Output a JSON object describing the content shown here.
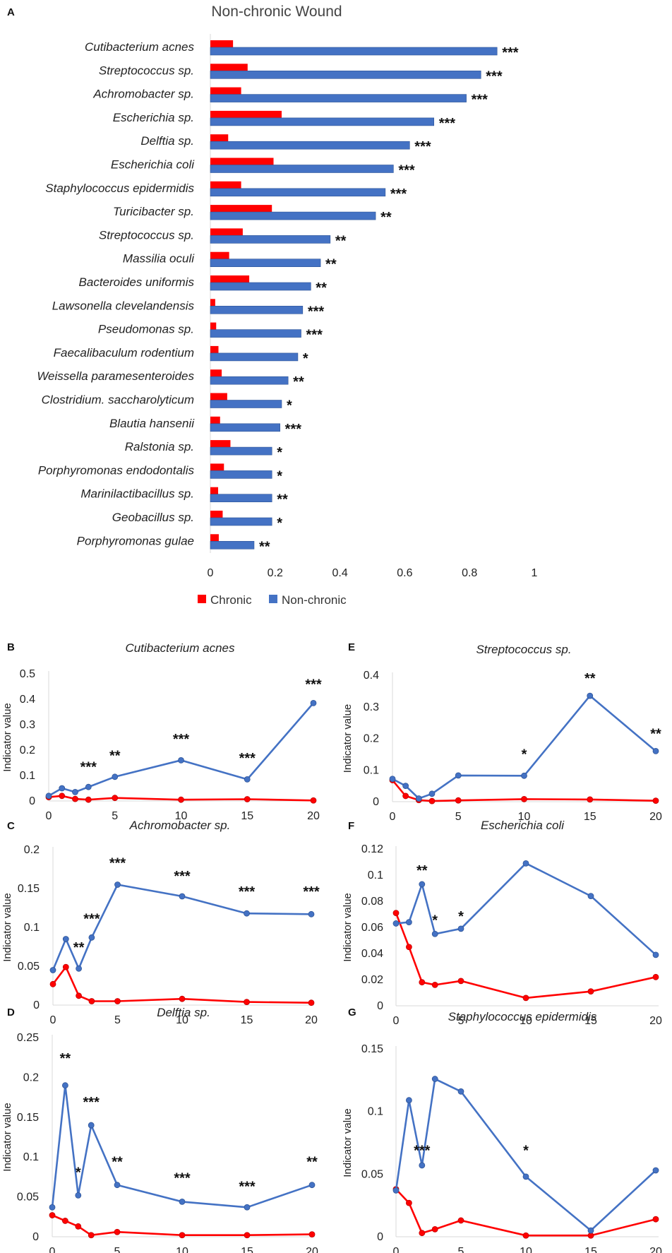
{
  "chart_data": [
    {
      "panel": "A",
      "type": "bar",
      "orientation": "horizontal",
      "title": "Non-chronic Wound",
      "categories": [
        "Cutibacterium acnes",
        "Streptococcus sp.",
        "Achromobacter sp.",
        "Escherichia sp.",
        "Delftia sp.",
        "Escherichia coli",
        "Staphylococcus epidermidis",
        "Turicibacter sp.",
        "Streptococcus sp.",
        "Massilia oculi",
        "Bacteroides uniformis",
        "Lawsonella clevelandensis",
        "Pseudomonas sp.",
        "Faecalibaculum rodentium",
        "Weissella paramesenteroides",
        "Clostridium. saccharolyticum",
        "Blautia hansenii",
        "Ralstonia sp.",
        "Porphyromonas endodontalis",
        "Marinilactibacillus sp.",
        "Geobacillus sp.",
        "Porphyromonas gulae"
      ],
      "series": [
        {
          "name": "Chronic",
          "color": "#ff0000",
          "values": [
            0.07,
            0.115,
            0.095,
            0.22,
            0.055,
            0.195,
            0.095,
            0.19,
            0.1,
            0.058,
            0.12,
            0.015,
            0.018,
            0.025,
            0.035,
            0.052,
            0.03,
            0.062,
            0.042,
            0.024,
            0.038,
            0.026
          ]
        },
        {
          "name": "Non-chronic",
          "color": "#4472c4",
          "values": [
            0.885,
            0.835,
            0.79,
            0.69,
            0.615,
            0.565,
            0.54,
            0.51,
            0.37,
            0.34,
            0.31,
            0.285,
            0.28,
            0.27,
            0.24,
            0.22,
            0.215,
            0.19,
            0.19,
            0.19,
            0.19,
            0.135
          ]
        }
      ],
      "significance": [
        "***",
        "***",
        "***",
        "***",
        "***",
        "***",
        "***",
        "**",
        "**",
        "**",
        "**",
        "***",
        "***",
        "*",
        "**",
        "*",
        "***",
        "*",
        "*",
        "**",
        "*",
        "**"
      ],
      "xticks": [
        0,
        0.2,
        0.4,
        0.6,
        0.8,
        1
      ],
      "xtick_labels": [
        "0",
        "0.2",
        "0.4",
        "0.6",
        "0.8",
        "1"
      ],
      "xlim": [
        0,
        1
      ],
      "legend": [
        "Chronic",
        "Non-chronic"
      ],
      "legend_position": "bottom"
    },
    {
      "panel": "B",
      "type": "line",
      "title": "Cutibacterium acnes",
      "ylabel": "Indicator value",
      "ylim": [
        0,
        0.5
      ],
      "yticks": [
        "0",
        "0.1",
        "0.2",
        "0.3",
        "0.4",
        "0.5"
      ],
      "xticks": [
        "0",
        "5",
        "10",
        "15",
        "20"
      ],
      "series": [
        {
          "name": "Non-chronic",
          "color": "#4472c4",
          "x": [
            0,
            1,
            2,
            3,
            5,
            10,
            15,
            20
          ],
          "y": [
            0.02,
            0.05,
            0.035,
            0.055,
            0.095,
            0.16,
            0.085,
            0.385
          ]
        },
        {
          "name": "Chronic",
          "color": "#ff0000",
          "x": [
            0,
            1,
            2,
            3,
            5,
            10,
            15,
            20
          ],
          "y": [
            0.015,
            0.02,
            0.008,
            0.005,
            0.012,
            0.005,
            0.007,
            0.002
          ]
        }
      ],
      "annotations": [
        {
          "x": 3,
          "y": 0.115,
          "text": "***"
        },
        {
          "x": 5,
          "y": 0.16,
          "text": "**"
        },
        {
          "x": 10,
          "y": 0.225,
          "text": "***"
        },
        {
          "x": 15,
          "y": 0.15,
          "text": "***"
        },
        {
          "x": 20,
          "y": 0.44,
          "text": "***"
        }
      ]
    },
    {
      "panel": "E",
      "type": "line",
      "title": "Streptococcus sp.",
      "ylabel": "Indicator value",
      "ylim": [
        0,
        0.4
      ],
      "yticks": [
        "0",
        "0.1",
        "0.2",
        "0.3",
        "0.4"
      ],
      "xticks": [
        "0",
        "5",
        "10",
        "15",
        "20"
      ],
      "series": [
        {
          "name": "Non-chronic",
          "color": "#4472c4",
          "x": [
            0,
            1,
            2,
            3,
            5,
            10,
            15,
            20
          ],
          "y": [
            0.072,
            0.05,
            0.01,
            0.025,
            0.083,
            0.082,
            0.335,
            0.16
          ]
        },
        {
          "name": "Chronic",
          "color": "#ff0000",
          "x": [
            0,
            1,
            2,
            3,
            5,
            10,
            15,
            20
          ],
          "y": [
            0.068,
            0.018,
            0.005,
            0.002,
            0.004,
            0.008,
            0.007,
            0.003
          ]
        }
      ],
      "annotations": [
        {
          "x": 10,
          "y": 0.135,
          "text": "*"
        },
        {
          "x": 15,
          "y": 0.375,
          "text": "**"
        },
        {
          "x": 20,
          "y": 0.2,
          "text": "**"
        }
      ]
    },
    {
      "panel": "C",
      "type": "line",
      "title": "Achromobacter sp.",
      "ylabel": "Indicator value",
      "ylim": [
        0,
        0.2
      ],
      "yticks": [
        "0",
        "0.05",
        "0.1",
        "0.15",
        "0.2"
      ],
      "xticks": [
        "0",
        "5",
        "10",
        "15",
        "20"
      ],
      "series": [
        {
          "name": "Non-chronic",
          "color": "#4472c4",
          "x": [
            0,
            1,
            2,
            3,
            5,
            10,
            15,
            20
          ],
          "y": [
            0.045,
            0.085,
            0.047,
            0.087,
            0.155,
            0.14,
            0.118,
            0.117
          ]
        },
        {
          "name": "Chronic",
          "color": "#ff0000",
          "x": [
            0,
            1,
            2,
            3,
            5,
            10,
            15,
            20
          ],
          "y": [
            0.027,
            0.049,
            0.012,
            0.005,
            0.005,
            0.008,
            0.004,
            0.003
          ]
        }
      ],
      "annotations": [
        {
          "x": 2,
          "y": 0.068,
          "text": "**"
        },
        {
          "x": 3,
          "y": 0.105,
          "text": "***"
        },
        {
          "x": 5,
          "y": 0.177,
          "text": "***"
        },
        {
          "x": 10,
          "y": 0.16,
          "text": "***"
        },
        {
          "x": 15,
          "y": 0.14,
          "text": "***"
        },
        {
          "x": 20,
          "y": 0.14,
          "text": "***"
        }
      ]
    },
    {
      "panel": "F",
      "type": "line",
      "title": "Escherichia coli",
      "ylabel": "Indicator value",
      "ylim": [
        0,
        0.12
      ],
      "yticks": [
        "0",
        "0.02",
        "0.04",
        "0.06",
        "0.08",
        "0.1",
        "0.12"
      ],
      "xticks": [
        "0",
        "5",
        "10",
        "15",
        "20"
      ],
      "series": [
        {
          "name": "Non-chronic",
          "color": "#4472c4",
          "x": [
            0,
            1,
            2,
            3,
            5,
            10,
            15,
            20
          ],
          "y": [
            0.063,
            0.064,
            0.093,
            0.055,
            0.059,
            0.109,
            0.084,
            0.039
          ]
        },
        {
          "name": "Chronic",
          "color": "#ff0000",
          "x": [
            0,
            1,
            2,
            3,
            5,
            10,
            15,
            20
          ],
          "y": [
            0.071,
            0.045,
            0.018,
            0.016,
            0.019,
            0.006,
            0.011,
            0.022
          ]
        }
      ],
      "annotations": [
        {
          "x": 2,
          "y": 0.1,
          "text": "**"
        },
        {
          "x": 3,
          "y": 0.062,
          "text": "*"
        },
        {
          "x": 5,
          "y": 0.065,
          "text": "*"
        }
      ]
    },
    {
      "panel": "D",
      "type": "line",
      "title": "Delftia  sp.",
      "ylabel": "Indicator value",
      "ylim": [
        0,
        0.25
      ],
      "yticks": [
        "0",
        "0.05",
        "0.1",
        "0.15",
        "0.2",
        "0.25"
      ],
      "xticks": [
        "0",
        "5",
        "10",
        "15",
        "20"
      ],
      "series": [
        {
          "name": "Non-chronic",
          "color": "#4472c4",
          "x": [
            0,
            1,
            2,
            3,
            5,
            10,
            15,
            20
          ],
          "y": [
            0.037,
            0.19,
            0.052,
            0.14,
            0.065,
            0.044,
            0.037,
            0.065
          ]
        },
        {
          "name": "Chronic",
          "color": "#ff0000",
          "x": [
            0,
            1,
            2,
            3,
            5,
            10,
            15,
            20
          ],
          "y": [
            0.027,
            0.02,
            0.013,
            0.002,
            0.006,
            0.002,
            0.002,
            0.003
          ]
        }
      ],
      "annotations": [
        {
          "x": 1,
          "y": 0.218,
          "text": "**"
        },
        {
          "x": 2,
          "y": 0.075,
          "text": "*"
        },
        {
          "x": 3,
          "y": 0.163,
          "text": "***"
        },
        {
          "x": 5,
          "y": 0.088,
          "text": "**"
        },
        {
          "x": 10,
          "y": 0.068,
          "text": "***"
        },
        {
          "x": 15,
          "y": 0.057,
          "text": "***"
        },
        {
          "x": 20,
          "y": 0.088,
          "text": "**"
        }
      ]
    },
    {
      "panel": "G",
      "type": "line",
      "title": "Staphylococcus epidermidis",
      "ylabel": "Indicator value",
      "ylim": [
        0,
        0.15
      ],
      "yticks": [
        "0",
        "0.05",
        "0.1",
        "0.15"
      ],
      "xticks": [
        "0",
        "5",
        "10",
        "15",
        "20"
      ],
      "series": [
        {
          "name": "Non-chronic",
          "color": "#4472c4",
          "x": [
            0,
            1,
            2,
            3,
            5,
            10,
            15,
            20
          ],
          "y": [
            0.037,
            0.109,
            0.057,
            0.126,
            0.116,
            0.048,
            0.005,
            0.053
          ]
        },
        {
          "name": "Chronic",
          "color": "#ff0000",
          "x": [
            0,
            1,
            2,
            3,
            5,
            10,
            15,
            20
          ],
          "y": [
            0.038,
            0.027,
            0.003,
            0.006,
            0.013,
            0.001,
            0.001,
            0.014
          ]
        }
      ],
      "annotations": [
        {
          "x": 2,
          "y": 0.065,
          "text": "***"
        },
        {
          "x": 10,
          "y": 0.065,
          "text": "*"
        }
      ]
    }
  ]
}
